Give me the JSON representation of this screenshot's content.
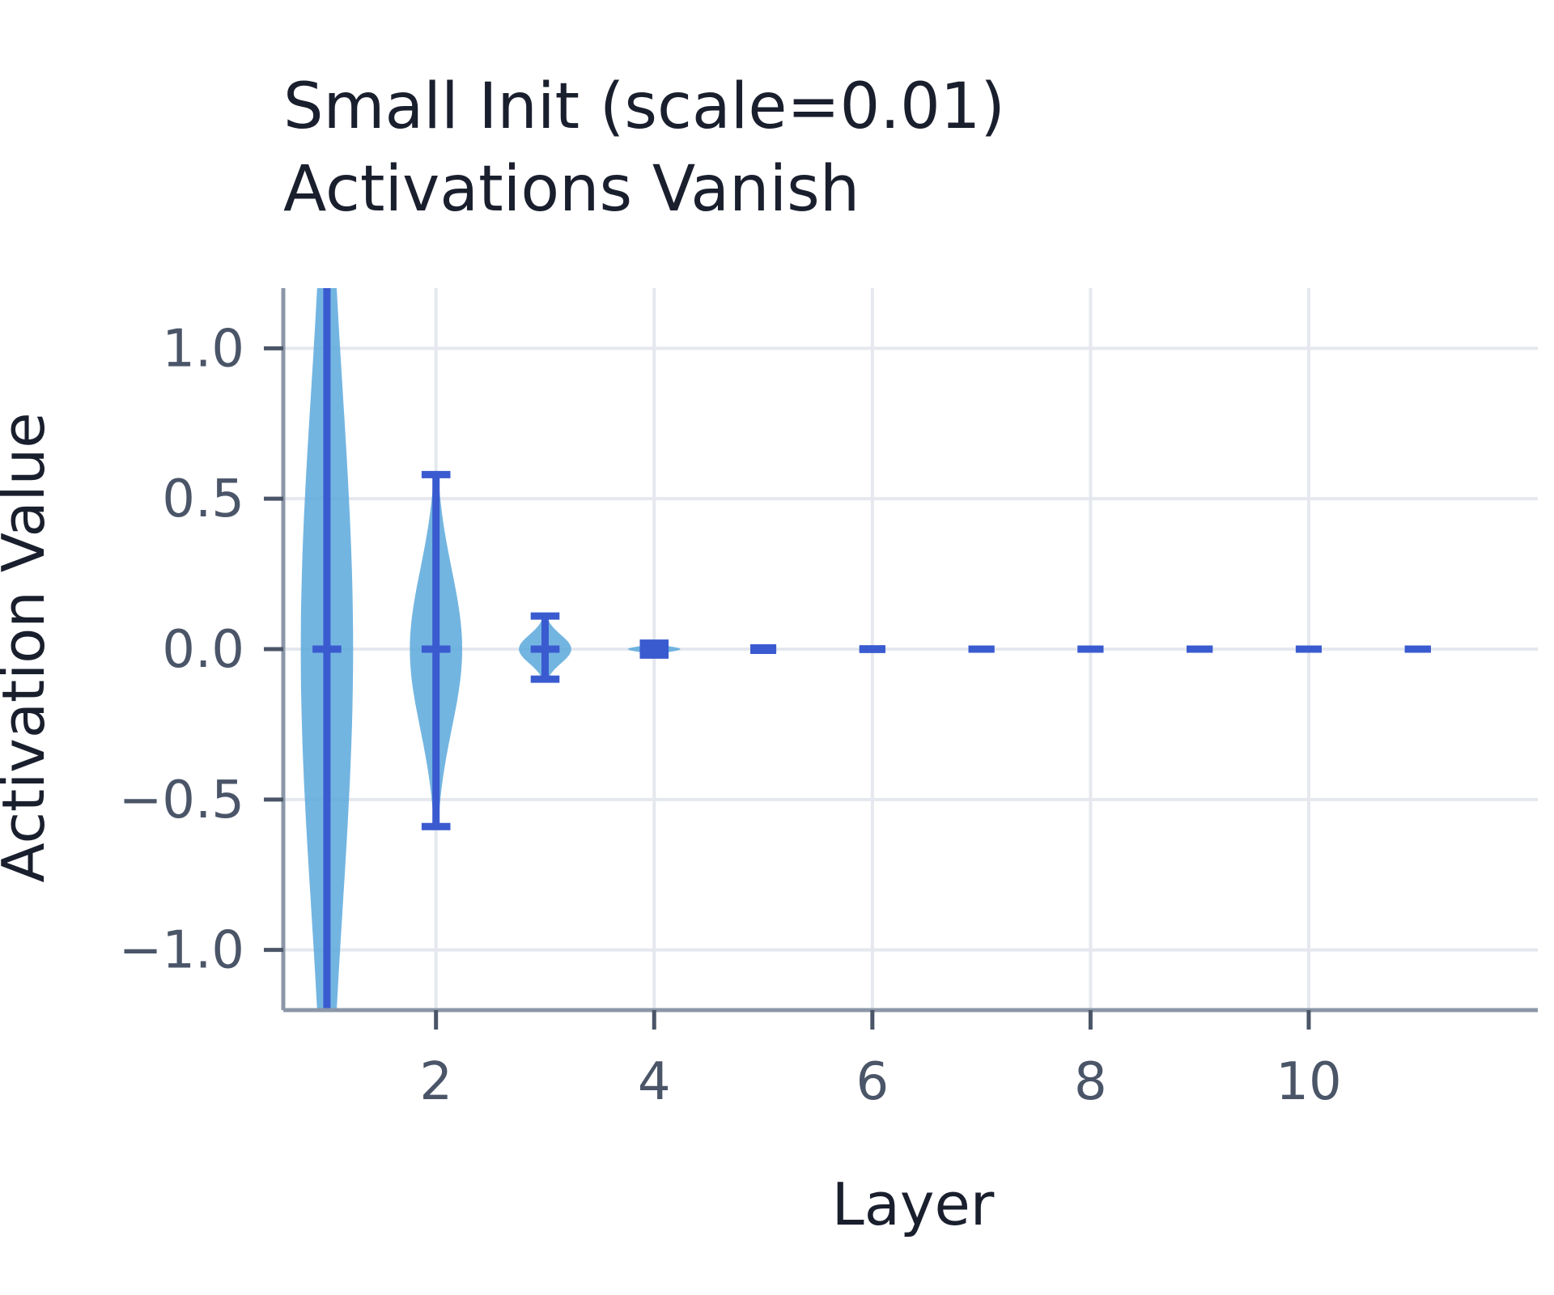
{
  "chart_data": {
    "type": "violin",
    "title_lines": [
      "Small Init (scale=0.01)",
      "Activations Vanish"
    ],
    "xlabel": "Layer",
    "ylabel": "Activation Value",
    "xlim": [
      0.6,
      12.1
    ],
    "ylim": [
      -1.2,
      1.2
    ],
    "xticks": [
      2,
      4,
      6,
      8,
      10
    ],
    "yticks": [
      1.0,
      0.5,
      0.0,
      -0.5,
      -1.0
    ],
    "ytick_labels": [
      "1.0",
      "0.5",
      "0.0",
      "−0.5",
      "−1.0"
    ],
    "grid": true,
    "colors": {
      "violin_fill": "#5aa8dc",
      "violin_lines": "#3a5bd0"
    },
    "violins": [
      {
        "layer": 1,
        "min": -1.9,
        "max": 1.9,
        "median": 0.0,
        "width": 0.24
      },
      {
        "layer": 2,
        "min": -0.59,
        "max": 0.58,
        "median": 0.0,
        "width": 0.24
      },
      {
        "layer": 3,
        "min": -0.1,
        "max": 0.11,
        "median": 0.0,
        "width": 0.24
      },
      {
        "layer": 4,
        "min": -0.02,
        "max": 0.02,
        "median": 0.0,
        "width": 0.24
      },
      {
        "layer": 5,
        "min": -0.004,
        "max": 0.004,
        "median": 0.0,
        "width": 0.12
      },
      {
        "layer": 6,
        "min": -0.001,
        "max": 0.001,
        "median": 0.0,
        "width": 0.12
      },
      {
        "layer": 7,
        "min": 0.0,
        "max": 0.0,
        "median": 0.0,
        "width": 0.12
      },
      {
        "layer": 8,
        "min": 0.0,
        "max": 0.0,
        "median": 0.0,
        "width": 0.12
      },
      {
        "layer": 9,
        "min": 0.0,
        "max": 0.0,
        "median": 0.0,
        "width": 0.12
      },
      {
        "layer": 10,
        "min": 0.0,
        "max": 0.0,
        "median": 0.0,
        "width": 0.12
      },
      {
        "layer": 11,
        "min": 0.0,
        "max": 0.0,
        "median": 0.0,
        "width": 0.12
      }
    ]
  }
}
